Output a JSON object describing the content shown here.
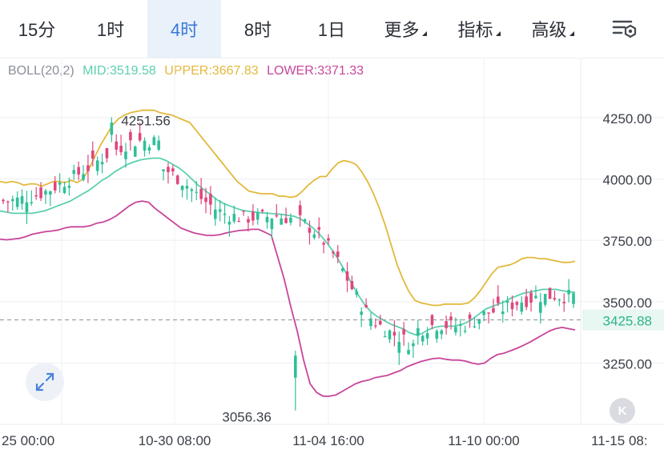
{
  "tabs": [
    {
      "label": "15分",
      "active": false,
      "dropdown": false
    },
    {
      "label": "1时",
      "active": false,
      "dropdown": false
    },
    {
      "label": "4时",
      "active": true,
      "dropdown": false
    },
    {
      "label": "8时",
      "active": false,
      "dropdown": false
    },
    {
      "label": "1日",
      "active": false,
      "dropdown": false
    },
    {
      "label": "更多",
      "active": false,
      "dropdown": true
    },
    {
      "label": "指标",
      "active": false,
      "dropdown": true
    },
    {
      "label": "高级",
      "active": false,
      "dropdown": true
    }
  ],
  "indicator": {
    "name": "BOLL(20,2)",
    "mid": "MID:3519.58",
    "upper": "UPPER:3667.83",
    "lower": "LOWER:3371.33"
  },
  "colors": {
    "up": "#2fbf9a",
    "down": "#e0467c",
    "mid": "#5ccfb0",
    "upper": "#e2b93b",
    "lower": "#c8459a",
    "accent": "#3a78d8"
  },
  "chart_data": {
    "type": "candlestick",
    "y_ticks": [
      "4250.00",
      "4000.00",
      "3750.00",
      "3500.00",
      "3250.00"
    ],
    "y_tick_values": [
      4250,
      4000,
      3750,
      3500,
      3250
    ],
    "x_ticks": [
      "25 00:00",
      "10-30 08:00",
      "11-04 16:00",
      "11-10 00:00",
      "11-15 08:"
    ],
    "ylim": [
      3000,
      4390
    ],
    "current_price": "3425.88",
    "current_price_value": 3425.88,
    "high_label": "4251.56",
    "high_value": 4251.56,
    "low_label": "3056.36",
    "low_value": 3056.36,
    "upper_band": [
      3990,
      3985,
      3990,
      3985,
      3975,
      3980,
      3980,
      3970,
      3980,
      3990,
      3990,
      3985,
      3995,
      3985,
      4000,
      4040,
      4090,
      4140,
      4180,
      4220,
      4245,
      4260,
      4270,
      4275,
      4280,
      4280,
      4280,
      4270,
      4265,
      4260,
      4250,
      4240,
      4230,
      4200,
      4170,
      4140,
      4110,
      4080,
      4050,
      4020,
      3990,
      3970,
      3950,
      3945,
      3940,
      3940,
      3940,
      3930,
      3930,
      3925,
      3930,
      3950,
      3975,
      3995,
      4010,
      4010,
      4040,
      4065,
      4075,
      4070,
      4060,
      4030,
      3990,
      3940,
      3880,
      3810,
      3730,
      3650,
      3590,
      3540,
      3505,
      3495,
      3490,
      3485,
      3485,
      3490,
      3490,
      3490,
      3490,
      3495,
      3515,
      3545,
      3580,
      3615,
      3640,
      3645,
      3650,
      3660,
      3675,
      3680,
      3680,
      3675,
      3675,
      3670,
      3665,
      3660,
      3660,
      3665
    ],
    "mid_band": [
      3870,
      3865,
      3860,
      3860,
      3860,
      3860,
      3865,
      3870,
      3880,
      3890,
      3900,
      3910,
      3925,
      3940,
      3955,
      3975,
      3995,
      4010,
      4030,
      4045,
      4060,
      4070,
      4078,
      4082,
      4085,
      4085,
      4075,
      4060,
      4045,
      4025,
      4000,
      3975,
      3955,
      3935,
      3915,
      3900,
      3890,
      3880,
      3872,
      3868,
      3865,
      3862,
      3860,
      3858,
      3856,
      3852,
      3848,
      3838,
      3820,
      3800,
      3775,
      3745,
      3710,
      3670,
      3625,
      3575,
      3530,
      3490,
      3460,
      3440,
      3425,
      3410,
      3400,
      3390,
      3375,
      3365,
      3370,
      3385,
      3395,
      3400,
      3400,
      3400,
      3405,
      3415,
      3430,
      3450,
      3470,
      3480,
      3490,
      3500,
      3515,
      3525,
      3535,
      3540,
      3545,
      3550,
      3550,
      3550,
      3545,
      3540,
      3538
    ],
    "lower_band": [
      3755,
      3752,
      3755,
      3758,
      3765,
      3775,
      3780,
      3785,
      3788,
      3792,
      3800,
      3805,
      3805,
      3805,
      3810,
      3820,
      3825,
      3835,
      3850,
      3870,
      3890,
      3905,
      3910,
      3905,
      3880,
      3860,
      3840,
      3820,
      3800,
      3790,
      3780,
      3775,
      3770,
      3770,
      3773,
      3780,
      3785,
      3790,
      3792,
      3795,
      3795,
      3783,
      3770,
      3680,
      3590,
      3480,
      3380,
      3260,
      3165,
      3130,
      3115,
      3115,
      3120,
      3135,
      3150,
      3165,
      3175,
      3180,
      3190,
      3195,
      3200,
      3210,
      3220,
      3235,
      3245,
      3255,
      3262,
      3268,
      3270,
      3265,
      3262,
      3262,
      3258,
      3250,
      3245,
      3250,
      3270,
      3285,
      3290,
      3300,
      3310,
      3322,
      3335,
      3350,
      3365,
      3380,
      3390,
      3395,
      3390,
      3385
    ]
  }
}
